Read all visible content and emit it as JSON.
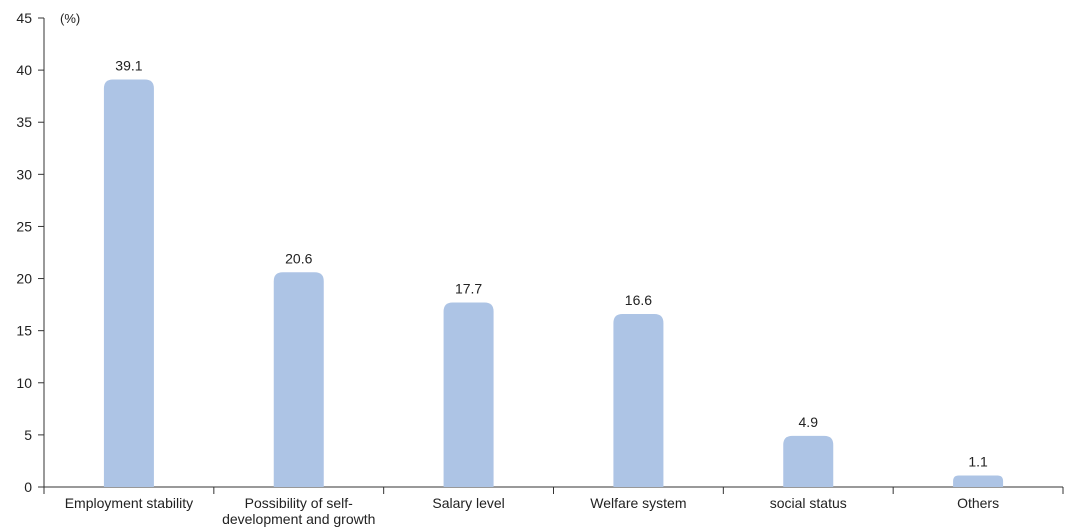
{
  "chart_data": {
    "type": "bar",
    "title": "",
    "xlabel": "",
    "ylabel": "",
    "unit_label": "(%)",
    "categories": [
      "Employment stability",
      "Possibility of self-development and growth",
      "Salary level",
      "Welfare system",
      "social status",
      "Others"
    ],
    "category_label_lines": [
      [
        "Employment stability"
      ],
      [
        "Possibility of self-",
        "development and growth"
      ],
      [
        "Salary level"
      ],
      [
        "Welfare system"
      ],
      [
        "social status"
      ],
      [
        "Others"
      ]
    ],
    "values": [
      39.1,
      20.6,
      17.7,
      16.6,
      4.9,
      1.1
    ],
    "value_labels": [
      "39.1",
      "20.6",
      "17.7",
      "16.6",
      "4.9",
      "1.1"
    ],
    "ylim": [
      0,
      45
    ],
    "yticks": [
      0,
      5,
      10,
      15,
      20,
      25,
      30,
      35,
      40,
      45
    ],
    "grid": false,
    "legend": "none",
    "bar_color": "#adc4e5",
    "axis_color": "#333333",
    "text_color": "#222222"
  }
}
